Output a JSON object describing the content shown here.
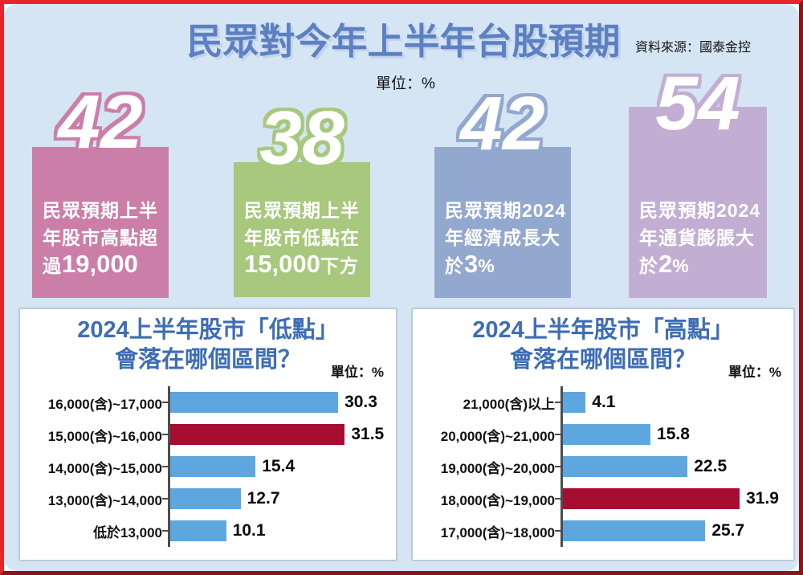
{
  "header": {
    "title": "民眾對今年上半年台股預期",
    "source": "資料來源：國泰金控",
    "unit": "單位：%"
  },
  "colors": {
    "background": "#d5e5f4",
    "title_blue": "#5c80c1",
    "panel_title_blue": "#3d6db6",
    "bar_blue": "#5ea7de",
    "bar_highlight_red": "#a60d31"
  },
  "cards": [
    {
      "value": "42",
      "color": "#cb7ea7",
      "lines": [
        [
          {
            "text": "民眾預期上半",
            "big": false
          }
        ],
        [
          {
            "text": "年股市高點超",
            "big": false
          }
        ],
        [
          {
            "text": "過",
            "big": false
          },
          {
            "text": "19,000",
            "big": true
          }
        ]
      ]
    },
    {
      "value": "38",
      "color": "#a7c87d",
      "lines": [
        [
          {
            "text": "民眾預期上半",
            "big": false
          }
        ],
        [
          {
            "text": "年股市低點在",
            "big": false
          }
        ],
        [
          {
            "text": "15,000",
            "big": true
          },
          {
            "text": "下方",
            "big": false
          }
        ]
      ]
    },
    {
      "value": "42",
      "color": "#92a8cf",
      "lines": [
        [
          {
            "text": "民眾預期2024",
            "big": false
          }
        ],
        [
          {
            "text": "年經濟成長大",
            "big": false
          }
        ],
        [
          {
            "text": "於",
            "big": false
          },
          {
            "text": "3",
            "big": true
          },
          {
            "text": "%",
            "big": false
          }
        ]
      ]
    },
    {
      "value": "54",
      "color": "#c3aed3",
      "lines": [
        [
          {
            "text": "民眾預期2024",
            "big": false
          }
        ],
        [
          {
            "text": "年通貨膨脹大",
            "big": false
          }
        ],
        [
          {
            "text": "於",
            "big": false
          },
          {
            "text": "2",
            "big": true
          },
          {
            "text": "%",
            "big": false
          }
        ]
      ]
    }
  ],
  "chart_data": [
    {
      "type": "bar",
      "orientation": "horizontal",
      "title_line1": "2024上半年股市「低點」",
      "title_line2": "會落在哪個區間？",
      "unit": "單位：%",
      "categories": [
        "16,000(含)~17,000",
        "15,000(含)~16,000",
        "14,000(含)~15,000",
        "13,000(含)~14,000",
        "低於13,000"
      ],
      "values": [
        30.3,
        31.5,
        15.4,
        12.7,
        10.1
      ],
      "highlight_index": 1,
      "bar_color": "#5ea7de",
      "highlight_color": "#a60d31",
      "xlim": [
        0,
        32
      ],
      "grid": false,
      "legend": false
    },
    {
      "type": "bar",
      "orientation": "horizontal",
      "title_line1": "2024上半年股市「高點」",
      "title_line2": "會落在哪個區間？",
      "unit": "單位：%",
      "categories": [
        "21,000(含)以上",
        "20,000(含)~21,000",
        "19,000(含)~20,000",
        "18,000(含)~19,000",
        "17,000(含)~18,000"
      ],
      "values": [
        4.1,
        15.8,
        22.5,
        31.9,
        25.7
      ],
      "highlight_index": 3,
      "bar_color": "#5ea7de",
      "highlight_color": "#a60d31",
      "xlim": [
        0,
        32
      ],
      "grid": false,
      "legend": false
    }
  ]
}
